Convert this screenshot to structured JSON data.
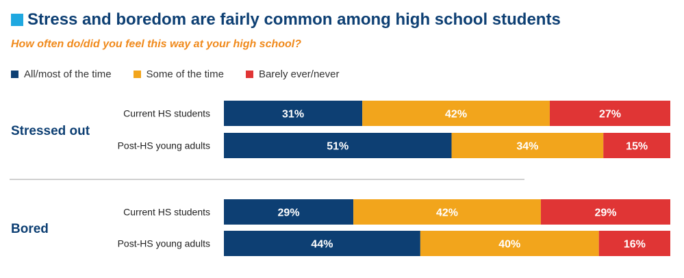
{
  "title": "Stress and boredom are fairly common among high school students",
  "subtitle": "How often do/did you feel this way at your high school?",
  "colors": {
    "title": "#0d3f73",
    "accent_square": "#1fa8e0",
    "subtitle": "#f08a1c",
    "divider": "#cfcfcf"
  },
  "chart_data": {
    "type": "bar",
    "orientation": "horizontal",
    "stacked": true,
    "normalized_percent": true,
    "title": "Stress and boredom are fairly common among high school students",
    "subtitle": "How often do/did you feel this way at your high school?",
    "legend_position": "top-left",
    "value_suffix": "%",
    "series": [
      {
        "name": "All/most of the time",
        "color": "#0d3f73"
      },
      {
        "name": "Some of the time",
        "color": "#f2a51c"
      },
      {
        "name": "Barely ever/never",
        "color": "#e03535"
      }
    ],
    "groups": [
      {
        "name": "Stressed out",
        "rows": [
          {
            "label": "Current HS students",
            "values": [
              31,
              42,
              27
            ]
          },
          {
            "label": "Post-HS young adults",
            "values": [
              51,
              34,
              15
            ]
          }
        ]
      },
      {
        "name": "Bored",
        "rows": [
          {
            "label": "Current HS students",
            "values": [
              29,
              42,
              29
            ]
          },
          {
            "label": "Post-HS young adults",
            "values": [
              44,
              40,
              16
            ]
          }
        ]
      }
    ]
  }
}
